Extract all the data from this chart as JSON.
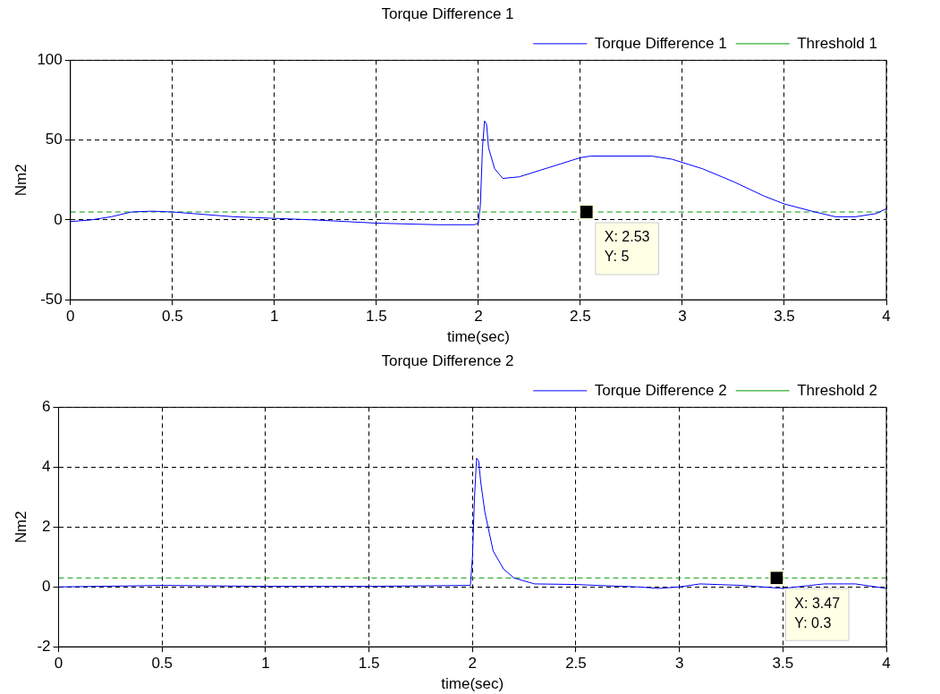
{
  "chart_data": [
    {
      "type": "line",
      "title": "Torque Difference 1",
      "xlabel": "time(sec)",
      "ylabel": "Nm2",
      "xlim": [
        0,
        4
      ],
      "xticks": [
        0,
        0.5,
        1,
        1.5,
        2,
        2.5,
        3,
        3.5,
        4
      ],
      "ylim": [
        -50,
        100
      ],
      "yticks": [
        -50,
        0,
        50,
        100
      ],
      "grid": true,
      "legend": "top right",
      "marker": "none",
      "series": [
        {
          "name": "Torque Difference 1",
          "color": "#0000ff",
          "line_style": "solid",
          "x": [
            0,
            0.1,
            0.2,
            0.3,
            0.4,
            0.5,
            0.6,
            0.8,
            1.0,
            1.2,
            1.5,
            1.8,
            1.98,
            2.0,
            2.01,
            2.02,
            2.03,
            2.04,
            2.05,
            2.08,
            2.12,
            2.2,
            2.3,
            2.4,
            2.5,
            2.55,
            2.85,
            2.95,
            3.1,
            3.25,
            3.4,
            3.5,
            3.65,
            3.75,
            3.85,
            3.95,
            4.0
          ],
          "values": [
            -1,
            0,
            2,
            5,
            5.5,
            5,
            4,
            2,
            1,
            0,
            -2,
            -3,
            -3,
            -2,
            10,
            45,
            62,
            60,
            45,
            32,
            26,
            27,
            31,
            35,
            39,
            40,
            40,
            38,
            32,
            24,
            15,
            10,
            5,
            2,
            2,
            4,
            7
          ]
        },
        {
          "name": "Threshold 1",
          "color": "#009900",
          "line_style": "dashed",
          "x": [
            0,
            4
          ],
          "values": [
            5,
            5
          ]
        }
      ],
      "annotations": [
        {
          "text": "X: 2.53\nY: 5",
          "x": 2.53,
          "y": 5
        }
      ]
    },
    {
      "type": "line",
      "title": "Torque Difference 2",
      "xlabel": "time(sec)",
      "ylabel": "Nm2",
      "xlim": [
        0,
        4
      ],
      "xticks": [
        0,
        0.5,
        1,
        1.5,
        2,
        2.5,
        3,
        3.5,
        4
      ],
      "ylim": [
        -2,
        6
      ],
      "yticks": [
        -2,
        0,
        2,
        4,
        6
      ],
      "grid": true,
      "legend": "top right",
      "marker": "none",
      "series": [
        {
          "name": "Torque Difference 2",
          "color": "#0000ff",
          "line_style": "solid",
          "x": [
            0,
            0.5,
            1.0,
            1.5,
            1.99,
            2.0,
            2.01,
            2.02,
            2.03,
            2.04,
            2.06,
            2.1,
            2.15,
            2.2,
            2.3,
            2.5,
            2.6,
            2.8,
            2.9,
            3.0,
            3.1,
            3.3,
            3.5,
            3.7,
            3.85,
            4.0
          ],
          "values": [
            0,
            0.05,
            0.02,
            0.02,
            0.05,
            1.0,
            3,
            4.3,
            4.2,
            3.5,
            2.5,
            1.2,
            0.6,
            0.3,
            0.1,
            0.08,
            0.05,
            0,
            -0.05,
            0,
            0.1,
            0.05,
            -0.05,
            0.1,
            0.1,
            -0.05
          ]
        },
        {
          "name": "Threshold 2",
          "color": "#009900",
          "line_style": "dashed",
          "x": [
            0,
            4
          ],
          "values": [
            0.3,
            0.3
          ]
        }
      ],
      "annotations": [
        {
          "text": "X: 3.47\nY: 0.3",
          "x": 3.47,
          "y": 0.3
        }
      ]
    }
  ]
}
